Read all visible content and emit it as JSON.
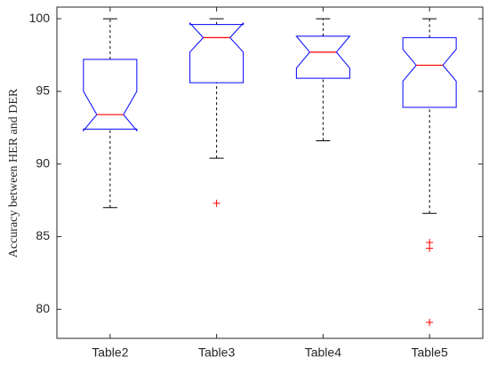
{
  "chart_data": {
    "type": "box",
    "y_label": "Accuracy between HER and DER",
    "categories": [
      "Table2",
      "Table3",
      "Table4",
      "Table5"
    ],
    "boxes": [
      {
        "whisker_low": 87.0,
        "q1": 92.4,
        "median": 93.4,
        "q3": 97.2,
        "whisker_high": 100,
        "notch": [
          92.3,
          95.0
        ],
        "outliers": []
      },
      {
        "whisker_low": 90.4,
        "q1": 95.6,
        "median": 98.7,
        "q3": 99.6,
        "whisker_high": 100,
        "notch": [
          97.7,
          99.7
        ],
        "outliers": [
          87.3
        ]
      },
      {
        "whisker_low": 91.6,
        "q1": 95.9,
        "median": 97.7,
        "q3": 98.8,
        "whisker_high": 100,
        "notch": [
          96.6,
          98.8
        ],
        "outliers": []
      },
      {
        "whisker_low": 86.6,
        "q1": 93.9,
        "median": 96.8,
        "q3": 98.7,
        "whisker_high": 100,
        "notch": [
          95.7,
          97.9
        ],
        "outliers": [
          84.6,
          84.2,
          79.1
        ]
      }
    ],
    "box_color": "#0000ff",
    "median_color": "#ff0000",
    "whisker_color": "#000000",
    "outlier_color": "#ff0000",
    "ylim": [
      78,
      100.8
    ],
    "yticks": [
      80,
      85,
      90,
      95,
      100
    ]
  }
}
